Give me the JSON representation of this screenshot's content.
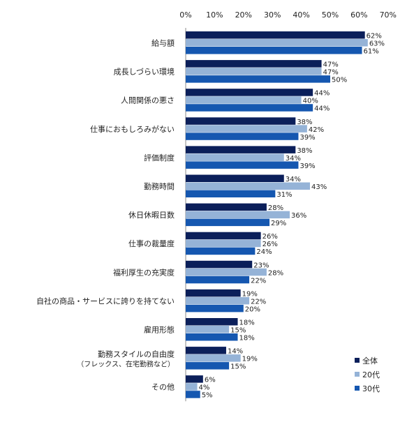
{
  "chart_data": {
    "type": "bar",
    "orientation": "horizontal",
    "xlim": [
      0,
      70
    ],
    "x_ticks": [
      "0%",
      "10%",
      "20%",
      "30%",
      "40%",
      "50%",
      "60%",
      "70%"
    ],
    "x_tick_values": [
      0,
      10,
      20,
      30,
      40,
      50,
      60,
      70
    ],
    "tick_axis_position": "top",
    "grid": false,
    "legend_position": "bottom-right",
    "categories": [
      {
        "label": "給与額",
        "sublabel": ""
      },
      {
        "label": "成長しづらい環境",
        "sublabel": ""
      },
      {
        "label": "人間関係の悪さ",
        "sublabel": ""
      },
      {
        "label": "仕事におもしろみがない",
        "sublabel": ""
      },
      {
        "label": "評価制度",
        "sublabel": ""
      },
      {
        "label": "勤務時間",
        "sublabel": ""
      },
      {
        "label": "休日休暇日数",
        "sublabel": ""
      },
      {
        "label": "仕事の裁量度",
        "sublabel": ""
      },
      {
        "label": "福利厚生の充実度",
        "sublabel": ""
      },
      {
        "label": "自社の商品・サービスに誇りを持てない",
        "sublabel": ""
      },
      {
        "label": "雇用形態",
        "sublabel": ""
      },
      {
        "label": "勤務スタイルの自由度",
        "sublabel": "（フレックス、在宅勤務など）"
      },
      {
        "label": "その他",
        "sublabel": ""
      }
    ],
    "series": [
      {
        "name": "全体",
        "color": "#0b1f5a",
        "values": [
          62,
          47,
          44,
          38,
          38,
          34,
          28,
          26,
          23,
          19,
          18,
          14,
          6
        ],
        "labels": [
          "62%",
          "47%",
          "44%",
          "38%",
          "38%",
          "34%",
          "28%",
          "26%",
          "23%",
          "19%",
          "18%",
          "14%",
          "6%"
        ]
      },
      {
        "name": "20代",
        "color": "#95b3d7",
        "values": [
          63,
          47,
          40,
          42,
          34,
          43,
          36,
          26,
          28,
          22,
          15,
          19,
          4
        ],
        "labels": [
          "63%",
          "47%",
          "40%",
          "42%",
          "34%",
          "43%",
          "36%",
          "26%",
          "28%",
          "22%",
          "15%",
          "19%",
          "4%"
        ]
      },
      {
        "name": "30代",
        "color": "#1557b0",
        "values": [
          61,
          50,
          44,
          39,
          39,
          31,
          29,
          24,
          22,
          20,
          18,
          15,
          5
        ],
        "labels": [
          "61%",
          "50%",
          "44%",
          "39%",
          "39%",
          "31%",
          "29%",
          "24%",
          "22%",
          "20%",
          "18%",
          "15%",
          "5%"
        ]
      }
    ]
  }
}
